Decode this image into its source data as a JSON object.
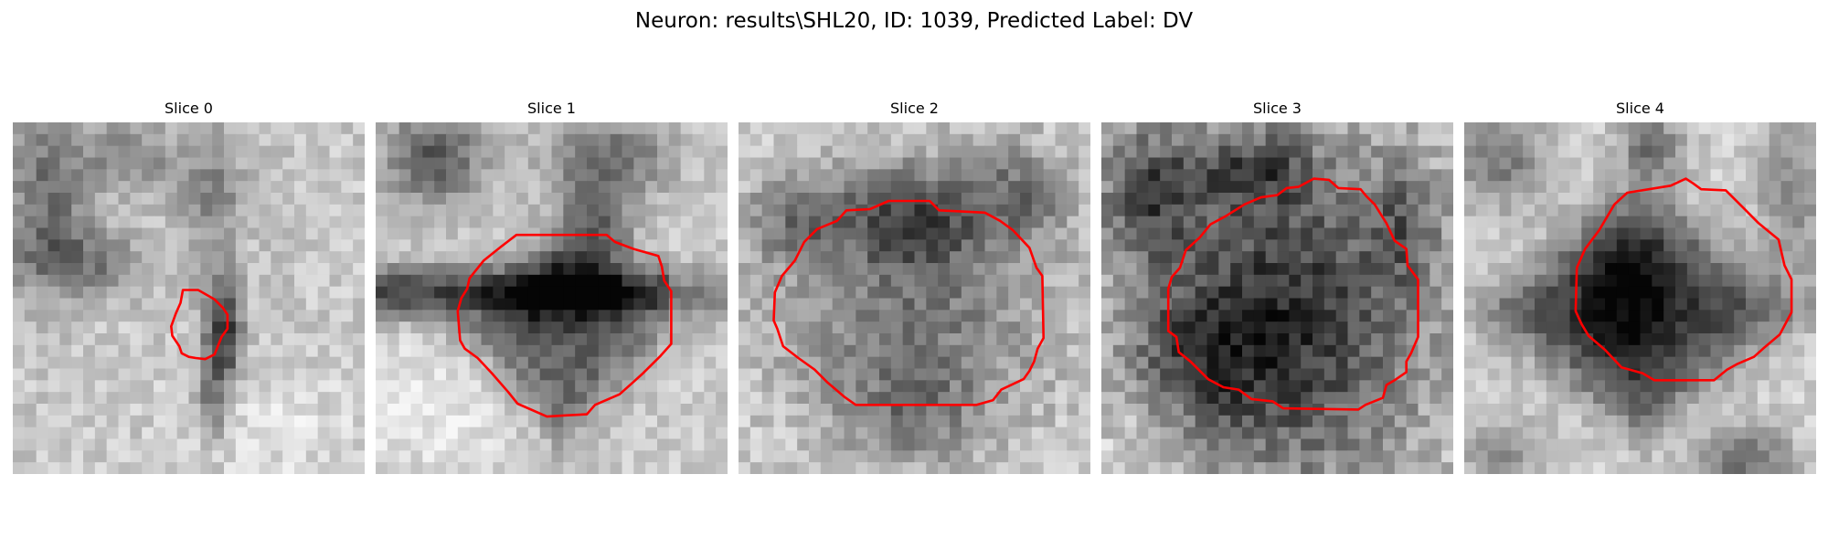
{
  "figure": {
    "title": "Neuron: results\\SHL20, ID: 1039, Predicted Label: DV"
  },
  "colors": {
    "contour": "#ff0000",
    "background": "#ffffff"
  },
  "slices": [
    {
      "title": "Slice 0"
    },
    {
      "title": "Slice 1"
    },
    {
      "title": "Slice 2"
    },
    {
      "title": "Slice 3"
    },
    {
      "title": "Slice 4"
    }
  ]
}
